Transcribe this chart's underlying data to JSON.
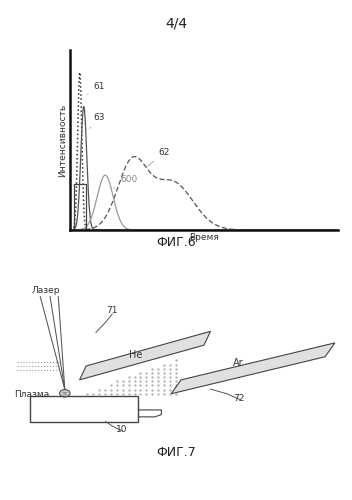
{
  "title": "4/4",
  "fig6_label": "ФИГ.6",
  "fig7_label": "ФИГ.7",
  "ylabel": "Интенсивность",
  "xlabel": "Время",
  "curve_labels": [
    "61",
    "63",
    "62",
    "600"
  ],
  "bg_color": "#ffffff"
}
